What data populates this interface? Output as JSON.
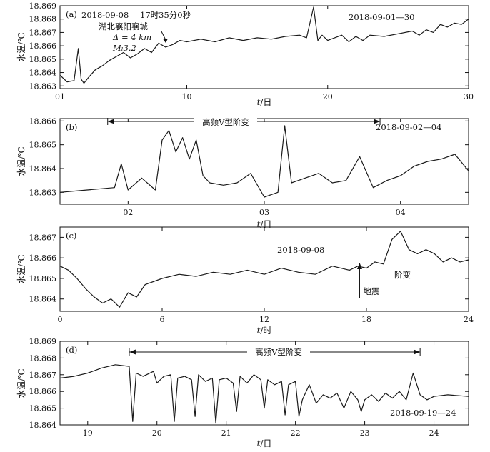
{
  "chart_data": [
    {
      "id": "a",
      "type": "line",
      "panel_label": "(a)",
      "ylabel": "水温/℃",
      "xlabel_var": "t",
      "xlabel_unit": "/日",
      "xlim": [
        1,
        30
      ],
      "ylim": [
        18.8628,
        18.869
      ],
      "y_ticks": [
        18.863,
        18.864,
        18.865,
        18.866,
        18.867,
        18.868,
        18.869
      ],
      "x_ticks": [
        1,
        10,
        20,
        30
      ],
      "x_tick_labels": [
        "01",
        "10",
        "20",
        "30"
      ],
      "series": [
        {
          "x": [
            1,
            1.5,
            2,
            2.3,
            2.5,
            2.7,
            3,
            3.5,
            4,
            4.5,
            5,
            5.5,
            6,
            6.5,
            7,
            7.5,
            8,
            8.5,
            9,
            9.5,
            10,
            11,
            12,
            13,
            14,
            15,
            16,
            17,
            18,
            18.5,
            19,
            19.3,
            19.6,
            20,
            21,
            21.5,
            22,
            22.5,
            23,
            24,
            25,
            26,
            26.5,
            27,
            27.5,
            28,
            28.5,
            29,
            29.5,
            30
          ],
          "y": [
            18.8638,
            18.8633,
            18.8634,
            18.8658,
            18.8635,
            18.8632,
            18.8636,
            18.8642,
            18.8645,
            18.8649,
            18.8652,
            18.8655,
            18.8651,
            18.8654,
            18.8658,
            18.8655,
            18.8662,
            18.8659,
            18.8661,
            18.8664,
            18.8663,
            18.8665,
            18.8663,
            18.8666,
            18.8664,
            18.8666,
            18.8665,
            18.8667,
            18.8668,
            18.8666,
            18.8689,
            18.8664,
            18.8668,
            18.8664,
            18.8668,
            18.8663,
            18.8667,
            18.8664,
            18.8668,
            18.8667,
            18.8669,
            18.8671,
            18.8668,
            18.8672,
            18.867,
            18.8676,
            18.8674,
            18.8677,
            18.8676,
            18.868
          ]
        }
      ],
      "annotations": {
        "date_range": "2018-09-01—30",
        "event_date": "2018-09-08",
        "event_time": "17时35分0秒",
        "location": "湖北襄阳襄城",
        "distance": "Δ = 4 km",
        "magnitude": "Mₗ3.2"
      }
    },
    {
      "id": "b",
      "type": "line",
      "panel_label": "(b)",
      "ylabel": "水温/℃",
      "xlabel_var": "t",
      "xlabel_unit": "/日",
      "xlim": [
        1.5,
        4.5
      ],
      "ylim": [
        18.8625,
        18.8661
      ],
      "y_ticks": [
        18.863,
        18.864,
        18.865,
        18.866
      ],
      "x_ticks": [
        2,
        3,
        4
      ],
      "x_tick_labels": [
        "02",
        "03",
        "04"
      ],
      "series": [
        {
          "x": [
            1.5,
            1.7,
            1.9,
            1.95,
            2.0,
            2.1,
            2.2,
            2.25,
            2.3,
            2.35,
            2.4,
            2.45,
            2.5,
            2.55,
            2.6,
            2.7,
            2.8,
            2.9,
            3.0,
            3.1,
            3.15,
            3.2,
            3.3,
            3.4,
            3.5,
            3.6,
            3.7,
            3.8,
            3.9,
            4.0,
            4.1,
            4.2,
            4.3,
            4.4,
            4.5
          ],
          "y": [
            18.863,
            18.8631,
            18.8632,
            18.8642,
            18.8631,
            18.8636,
            18.8631,
            18.8652,
            18.8656,
            18.8647,
            18.8653,
            18.8644,
            18.8652,
            18.8637,
            18.8634,
            18.8633,
            18.8634,
            18.8638,
            18.8628,
            18.863,
            18.8658,
            18.8634,
            18.8636,
            18.8638,
            18.8634,
            18.8635,
            18.8645,
            18.8632,
            18.8635,
            18.8637,
            18.8641,
            18.8643,
            18.8644,
            18.8646,
            18.8639
          ]
        }
      ],
      "annotations": {
        "date_range": "2018-09-02—04",
        "arrow_label": "高频V型阶变",
        "arrow_from": 1.85,
        "arrow_to": 3.85
      }
    },
    {
      "id": "c",
      "type": "line",
      "panel_label": "(c)",
      "ylabel": "水温/℃",
      "xlabel_var": "t",
      "xlabel_unit": "/时",
      "xlim": [
        0,
        24
      ],
      "ylim": [
        18.8634,
        18.8675
      ],
      "y_ticks": [
        18.864,
        18.865,
        18.866,
        18.867
      ],
      "x_ticks": [
        0,
        6,
        12,
        18,
        24
      ],
      "x_tick_labels": [
        "0",
        "6",
        "12",
        "18",
        "24"
      ],
      "series": [
        {
          "x": [
            0,
            0.5,
            1,
            1.5,
            2,
            2.5,
            3,
            3.5,
            4,
            4.5,
            5,
            6,
            7,
            8,
            9,
            10,
            11,
            12,
            13,
            14,
            15,
            16,
            17,
            17.5,
            18,
            18.5,
            19,
            19.5,
            20,
            20.5,
            21,
            21.5,
            22,
            22.5,
            23,
            23.5,
            24
          ],
          "y": [
            18.8656,
            18.8654,
            18.865,
            18.8645,
            18.8641,
            18.8638,
            18.864,
            18.8636,
            18.8643,
            18.8641,
            18.8647,
            18.865,
            18.8652,
            18.8651,
            18.8653,
            18.8652,
            18.8654,
            18.8652,
            18.8655,
            18.8653,
            18.8652,
            18.8656,
            18.8654,
            18.8656,
            18.8655,
            18.8658,
            18.8657,
            18.8669,
            18.8673,
            18.8664,
            18.8662,
            18.8664,
            18.8662,
            18.8658,
            18.866,
            18.8658,
            18.8659
          ]
        }
      ],
      "annotations": {
        "date": "2018-09-08",
        "quake_label": "地震",
        "quake_x": 17.6,
        "step_label": "阶变"
      }
    },
    {
      "id": "d",
      "type": "line",
      "panel_label": "(d)",
      "ylabel": "水温/℃",
      "xlabel_var": "t",
      "xlabel_unit": "/日",
      "xlim": [
        18.6,
        24.5
      ],
      "ylim": [
        18.864,
        18.869
      ],
      "y_ticks": [
        18.864,
        18.865,
        18.866,
        18.867,
        18.868,
        18.869
      ],
      "x_ticks": [
        19,
        20,
        21,
        22,
        23,
        24
      ],
      "x_tick_labels": [
        "19",
        "20",
        "21",
        "22",
        "23",
        "24"
      ],
      "series": [
        {
          "x": [
            18.6,
            18.8,
            19.0,
            19.2,
            19.4,
            19.6,
            19.65,
            19.7,
            19.8,
            19.95,
            20.0,
            20.1,
            20.2,
            20.25,
            20.3,
            20.4,
            20.5,
            20.55,
            20.6,
            20.7,
            20.8,
            20.85,
            20.9,
            21.0,
            21.1,
            21.15,
            21.2,
            21.3,
            21.4,
            21.5,
            21.55,
            21.6,
            21.7,
            21.8,
            21.85,
            21.9,
            22.0,
            22.05,
            22.1,
            22.2,
            22.3,
            22.4,
            22.5,
            22.6,
            22.7,
            22.8,
            22.9,
            22.95,
            23.0,
            23.1,
            23.2,
            23.3,
            23.4,
            23.5,
            23.6,
            23.7,
            23.8,
            23.9,
            24.0,
            24.2,
            24.5
          ],
          "y": [
            18.8668,
            18.8669,
            18.8671,
            18.8674,
            18.8676,
            18.8675,
            18.8642,
            18.8671,
            18.8669,
            18.8672,
            18.8665,
            18.8669,
            18.867,
            18.8642,
            18.8668,
            18.8669,
            18.8667,
            18.8645,
            18.867,
            18.8666,
            18.8668,
            18.8641,
            18.8667,
            18.8668,
            18.8665,
            18.8648,
            18.8669,
            18.8665,
            18.867,
            18.8667,
            18.865,
            18.8667,
            18.8664,
            18.8666,
            18.8646,
            18.8664,
            18.8666,
            18.8645,
            18.8655,
            18.8664,
            18.8653,
            18.8658,
            18.8656,
            18.8659,
            18.865,
            18.866,
            18.8655,
            18.8648,
            18.8655,
            18.8658,
            18.8654,
            18.8659,
            18.8656,
            18.866,
            18.8655,
            18.8671,
            18.8658,
            18.8655,
            18.8657,
            18.8658,
            18.8657
          ]
        }
      ],
      "annotations": {
        "date_range": "2018-09-19—24",
        "arrow_label": "高频V型阶变",
        "arrow_from": 19.6,
        "arrow_to": 23.8
      }
    }
  ]
}
